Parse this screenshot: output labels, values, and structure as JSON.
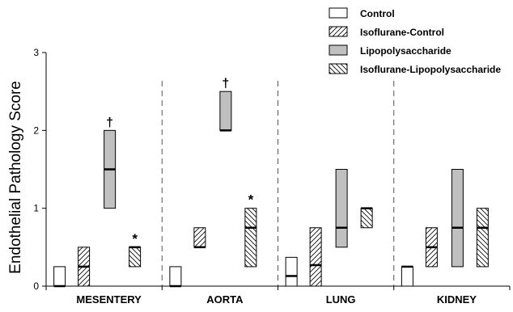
{
  "chart_data": {
    "type": "box",
    "title": "",
    "xlabel": "",
    "ylabel": "Endothelial Pathology Score",
    "ylim": [
      0,
      3
    ],
    "yticks": [
      "0",
      "1",
      "2",
      "3"
    ],
    "categories": [
      "MESENTERY",
      "AORTA",
      "LUNG",
      "KIDNEY"
    ],
    "legend_position": "top-right",
    "colors": {
      "axis": "#000000",
      "separator": "#555555",
      "lps_fill": "#c0c0c0",
      "white_fill": "#ffffff"
    },
    "series": [
      {
        "name": "Control",
        "pattern": "none",
        "boxes": [
          {
            "category": "MESENTERY",
            "low": 0,
            "high": 0.25,
            "median": 0
          },
          {
            "category": "AORTA",
            "low": 0,
            "high": 0.25,
            "median": 0
          },
          {
            "category": "LUNG",
            "low": 0,
            "high": 0.37,
            "median": 0.13
          },
          {
            "category": "KIDNEY",
            "low": 0,
            "high": 0.25,
            "median": 0.25
          }
        ]
      },
      {
        "name": "Isoflurane-Control",
        "pattern": "diag-up",
        "boxes": [
          {
            "category": "MESENTERY",
            "low": 0,
            "high": 0.5,
            "median": 0.25
          },
          {
            "category": "AORTA",
            "low": 0.5,
            "high": 0.75,
            "median": 0.5
          },
          {
            "category": "LUNG",
            "low": 0,
            "high": 0.75,
            "median": 0.27
          },
          {
            "category": "KIDNEY",
            "low": 0.25,
            "high": 0.75,
            "median": 0.5
          }
        ]
      },
      {
        "name": "Lipopolysaccharide",
        "pattern": "solid-gray",
        "boxes": [
          {
            "category": "MESENTERY",
            "low": 1,
            "high": 2,
            "median": 1.5,
            "marker": "†"
          },
          {
            "category": "AORTA",
            "low": 2,
            "high": 2.5,
            "median": 2,
            "marker": "†"
          },
          {
            "category": "LUNG",
            "low": 0.5,
            "high": 1.5,
            "median": 0.75
          },
          {
            "category": "KIDNEY",
            "low": 0.25,
            "high": 1.5,
            "median": 0.75
          }
        ]
      },
      {
        "name": "Isoflurane-Lipopolysaccharide",
        "pattern": "diag-down",
        "boxes": [
          {
            "category": "MESENTERY",
            "low": 0.25,
            "high": 0.5,
            "median": 0.5,
            "marker": "*"
          },
          {
            "category": "AORTA",
            "low": 0.25,
            "high": 1,
            "median": 0.75,
            "marker": "*"
          },
          {
            "category": "LUNG",
            "low": 0.75,
            "high": 1,
            "median": 1
          },
          {
            "category": "KIDNEY",
            "low": 0.25,
            "high": 1,
            "median": 0.75
          }
        ]
      }
    ]
  }
}
